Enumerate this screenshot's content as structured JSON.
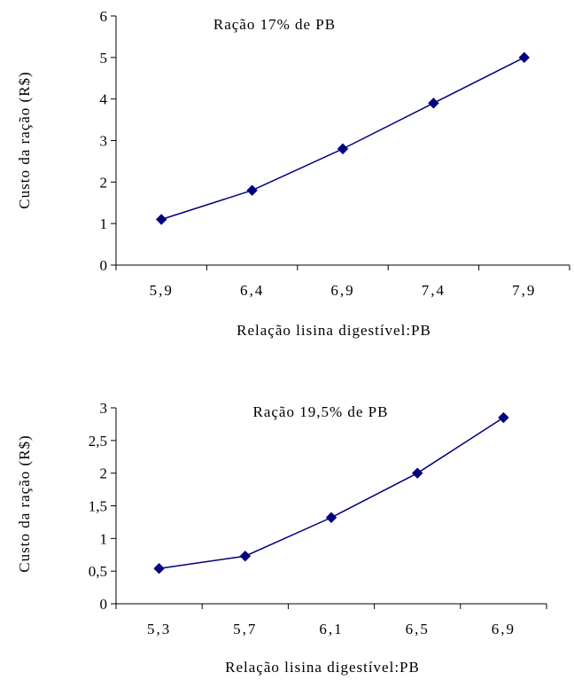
{
  "chart_data": [
    {
      "type": "line",
      "title": "Ração  17%  de  PB",
      "xlabel": "Relação  lisina  digestível:PB",
      "ylabel": "Custo  da  ração  (R$)",
      "categories": [
        "5,9",
        "6,4",
        "6,9",
        "7,4",
        "7,9"
      ],
      "values": [
        1.1,
        1.8,
        2.8,
        3.9,
        5.0
      ],
      "yticks": [
        "0",
        "1",
        "2",
        "3",
        "4",
        "5",
        "6"
      ],
      "ylim": [
        0,
        6
      ],
      "grid": false,
      "color": "#000080"
    },
    {
      "type": "line",
      "title": "Ração  19,5%  de  PB",
      "xlabel": "Relação  lisina  digestível:PB",
      "ylabel": "Custo  da  ração  (R$)",
      "categories": [
        "5,3",
        "5,7",
        "6,1",
        "6,5",
        "6,9"
      ],
      "values": [
        0.54,
        0.73,
        1.32,
        2.0,
        2.85
      ],
      "yticks": [
        "0",
        "0,5",
        "1",
        "1,5",
        "2",
        "2,5",
        "3"
      ],
      "ylim": [
        0,
        3
      ],
      "grid": false,
      "color": "#000080"
    }
  ]
}
